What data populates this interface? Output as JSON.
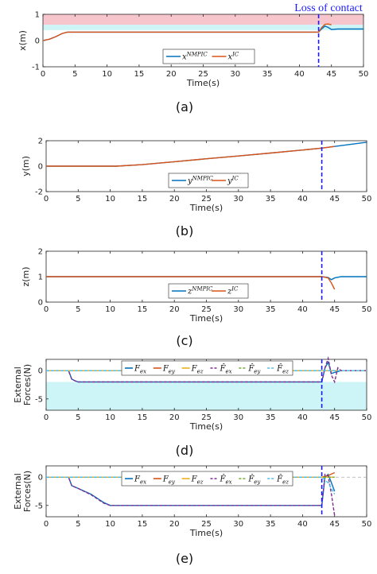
{
  "annotation": "Loss of contact",
  "chart_data": [
    {
      "type": "line",
      "panel_label": "(a)",
      "xlabel": "Time(s)",
      "ylabel": "x(m)",
      "xlim": [
        0,
        50
      ],
      "ylim": [
        -1,
        1
      ],
      "xticks": [
        "0",
        "5",
        "10",
        "15",
        "20",
        "25",
        "30",
        "35",
        "40",
        "45",
        "50"
      ],
      "yticks": [
        "-1",
        "0",
        "1"
      ],
      "contact_loss_time": 43,
      "bands": [
        {
          "from": 0.6,
          "to": 1.0,
          "color": "#f7c6cc"
        },
        {
          "from": 0.4,
          "to": 0.6,
          "color": "#cdf4f6"
        }
      ],
      "legend": [
        {
          "label": "x",
          "sup": "NMPIC",
          "color": "#0072bd"
        },
        {
          "label": "x",
          "sup": "IC",
          "color": "#d95319"
        }
      ],
      "series": [
        {
          "name": "x^NMPIC",
          "color": "#0072bd",
          "x": [
            0,
            1,
            2,
            3,
            3.8,
            43,
            43.5,
            44,
            44.5,
            45,
            46,
            50
          ],
          "y": [
            0,
            0.05,
            0.15,
            0.27,
            0.32,
            0.32,
            0.45,
            0.55,
            0.5,
            0.42,
            0.44,
            0.44
          ]
        },
        {
          "name": "x^IC",
          "color": "#d95319",
          "x": [
            0,
            1,
            2,
            3,
            3.8,
            43,
            43.5,
            44,
            44.5,
            45
          ],
          "y": [
            0,
            0.05,
            0.15,
            0.27,
            0.32,
            0.32,
            0.5,
            0.62,
            0.63,
            0.6
          ]
        }
      ]
    },
    {
      "type": "line",
      "panel_label": "(b)",
      "xlabel": "Time(s)",
      "ylabel": "y(m)",
      "xlim": [
        0,
        50
      ],
      "ylim": [
        -2,
        2
      ],
      "xticks": [
        "0",
        "5",
        "10",
        "15",
        "20",
        "25",
        "30",
        "35",
        "40",
        "45",
        "50"
      ],
      "yticks": [
        "-2",
        "0",
        "2"
      ],
      "contact_loss_time": 43,
      "bands": [],
      "legend": [
        {
          "label": "y",
          "sup": "NMPIC",
          "color": "#0072bd"
        },
        {
          "label": "y",
          "sup": "IC",
          "color": "#d95319"
        }
      ],
      "series": [
        {
          "name": "y^NMPIC",
          "color": "#0072bd",
          "x": [
            0,
            11,
            15,
            20,
            25,
            30,
            35,
            40,
            43,
            45,
            50
          ],
          "y": [
            0,
            0,
            0.12,
            0.35,
            0.58,
            0.8,
            1.03,
            1.27,
            1.42,
            1.55,
            1.88
          ]
        },
        {
          "name": "y^IC",
          "color": "#d95319",
          "x": [
            0,
            11,
            15,
            20,
            25,
            30,
            35,
            40,
            43,
            45
          ],
          "y": [
            0,
            0,
            0.12,
            0.35,
            0.58,
            0.8,
            1.03,
            1.27,
            1.42,
            1.55
          ]
        }
      ]
    },
    {
      "type": "line",
      "panel_label": "(c)",
      "xlabel": "Time(s)",
      "ylabel": "z(m)",
      "xlim": [
        0,
        50
      ],
      "ylim": [
        0,
        2
      ],
      "xticks": [
        "0",
        "5",
        "10",
        "15",
        "20",
        "25",
        "30",
        "35",
        "40",
        "45",
        "50"
      ],
      "yticks": [
        "0",
        "1",
        "2"
      ],
      "contact_loss_time": 43,
      "bands": [],
      "legend": [
        {
          "label": "z",
          "sup": "NMPIC",
          "color": "#0072bd"
        },
        {
          "label": "z",
          "sup": "IC",
          "color": "#d95319"
        }
      ],
      "series": [
        {
          "name": "z^NMPIC",
          "color": "#0072bd",
          "x": [
            0,
            43,
            44,
            44.5,
            45,
            46,
            50
          ],
          "y": [
            1,
            1,
            0.97,
            0.88,
            0.95,
            1,
            1
          ]
        },
        {
          "name": "z^IC",
          "color": "#d95319",
          "x": [
            0,
            43,
            44,
            44.5,
            45
          ],
          "y": [
            1,
            1,
            0.95,
            0.75,
            0.5
          ]
        }
      ]
    },
    {
      "type": "line",
      "panel_label": "(d)",
      "xlabel": "Time(s)",
      "ylabel": "External Forces(N)",
      "xlim": [
        0,
        50
      ],
      "ylim": [
        -7,
        2
      ],
      "xticks": [
        "0",
        "5",
        "10",
        "15",
        "20",
        "25",
        "30",
        "35",
        "40",
        "45",
        "50"
      ],
      "yticks": [
        "0",
        "-5"
      ],
      "contact_loss_time": 43,
      "bands": [
        {
          "from": -7,
          "to": -2,
          "color": "#cdf4f6"
        }
      ],
      "legend": [
        {
          "label": "F",
          "sub": "ex",
          "hat": false,
          "dash": false,
          "color": "#0072bd"
        },
        {
          "label": "F",
          "sub": "ey",
          "hat": false,
          "dash": false,
          "color": "#d95319"
        },
        {
          "label": "F",
          "sub": "ez",
          "hat": false,
          "dash": false,
          "color": "#edb120"
        },
        {
          "label": "F",
          "sub": "ex",
          "hat": true,
          "dash": true,
          "color": "#7e2f8e"
        },
        {
          "label": "F",
          "sub": "ey",
          "hat": true,
          "dash": true,
          "color": "#77ac30"
        },
        {
          "label": "F",
          "sub": "ez",
          "hat": true,
          "dash": true,
          "color": "#4dbeee"
        }
      ],
      "series": [
        {
          "name": "Fex",
          "color": "#0072bd",
          "dash": false,
          "x": [
            0,
            3.5,
            4,
            4.5,
            5,
            43,
            43.5,
            44,
            44.5,
            45,
            46,
            50
          ],
          "y": [
            0,
            0,
            -1.5,
            -1.8,
            -2,
            -2,
            0.5,
            1.5,
            -0.5,
            -0.3,
            0,
            0
          ]
        },
        {
          "name": "Fey",
          "color": "#d95319",
          "dash": false,
          "x": [
            0,
            50
          ],
          "y": [
            0,
            0
          ]
        },
        {
          "name": "Fez",
          "color": "#edb120",
          "dash": false,
          "x": [
            0,
            50
          ],
          "y": [
            0,
            0
          ]
        },
        {
          "name": "F^ex",
          "color": "#7e2f8e",
          "dash": true,
          "x": [
            0,
            3.5,
            4,
            4.5,
            5,
            43,
            43.5,
            44,
            44.5,
            45,
            45.5,
            46,
            50
          ],
          "y": [
            0,
            0,
            -1.5,
            -1.8,
            -2,
            -2,
            0.5,
            2.2,
            -0.8,
            -2,
            0.5,
            0,
            0
          ]
        },
        {
          "name": "F^ey",
          "color": "#77ac30",
          "dash": true,
          "x": [
            0,
            50
          ],
          "y": [
            0,
            0
          ]
        },
        {
          "name": "F^ez",
          "color": "#4dbeee",
          "dash": true,
          "x": [
            0,
            50
          ],
          "y": [
            0,
            0
          ]
        }
      ]
    },
    {
      "type": "line",
      "panel_label": "(e)",
      "xlabel": "Time(s)",
      "ylabel": "External Forces(N)",
      "xlim": [
        0,
        50
      ],
      "ylim": [
        -7,
        2
      ],
      "xticks": [
        "0",
        "5",
        "10",
        "15",
        "20",
        "25",
        "30",
        "35",
        "40",
        "45",
        "50"
      ],
      "yticks": [
        "0",
        "-5"
      ],
      "contact_loss_time": 43,
      "bands": [],
      "legend": [
        {
          "label": "F",
          "sub": "ex",
          "hat": false,
          "dash": false,
          "color": "#0072bd"
        },
        {
          "label": "F",
          "sub": "ey",
          "hat": false,
          "dash": false,
          "color": "#d95319"
        },
        {
          "label": "F",
          "sub": "ez",
          "hat": false,
          "dash": false,
          "color": "#edb120"
        },
        {
          "label": "F",
          "sub": "ex",
          "hat": true,
          "dash": true,
          "color": "#7e2f8e"
        },
        {
          "label": "F",
          "sub": "ey",
          "hat": true,
          "dash": true,
          "color": "#77ac30"
        },
        {
          "label": "F",
          "sub": "ez",
          "hat": true,
          "dash": true,
          "color": "#4dbeee"
        }
      ],
      "series": [
        {
          "name": "Fex",
          "color": "#0072bd",
          "dash": false,
          "x": [
            0,
            3.5,
            4,
            5,
            7,
            9,
            10,
            43,
            43.5,
            44,
            44.5,
            45
          ],
          "y": [
            0,
            0,
            -1.5,
            -2,
            -3,
            -4.5,
            -5,
            -5,
            0,
            0.5,
            -1,
            -2.5
          ]
        },
        {
          "name": "Fey",
          "color": "#d95319",
          "dash": false,
          "x": [
            0,
            43,
            44,
            45
          ],
          "y": [
            0,
            0,
            0.3,
            0.8
          ]
        },
        {
          "name": "Fez",
          "color": "#edb120",
          "dash": false,
          "x": [
            0,
            45
          ],
          "y": [
            0,
            0
          ]
        },
        {
          "name": "F^ex",
          "color": "#7e2f8e",
          "dash": true,
          "x": [
            0,
            3.5,
            4,
            5,
            7,
            9,
            10,
            43,
            43.5,
            44,
            44.5,
            45
          ],
          "y": [
            0,
            0,
            -1.5,
            -2,
            -3.1,
            -4.6,
            -5,
            -5,
            0.5,
            0.2,
            -3,
            -6.8
          ]
        },
        {
          "name": "F^ey",
          "color": "#77ac30",
          "dash": true,
          "x": [
            0,
            45
          ],
          "y": [
            0,
            0
          ]
        },
        {
          "name": "F^ez",
          "color": "#4dbeee",
          "dash": true,
          "x": [
            0,
            43,
            44,
            45
          ],
          "y": [
            0,
            0,
            -1,
            -3
          ]
        }
      ]
    }
  ]
}
